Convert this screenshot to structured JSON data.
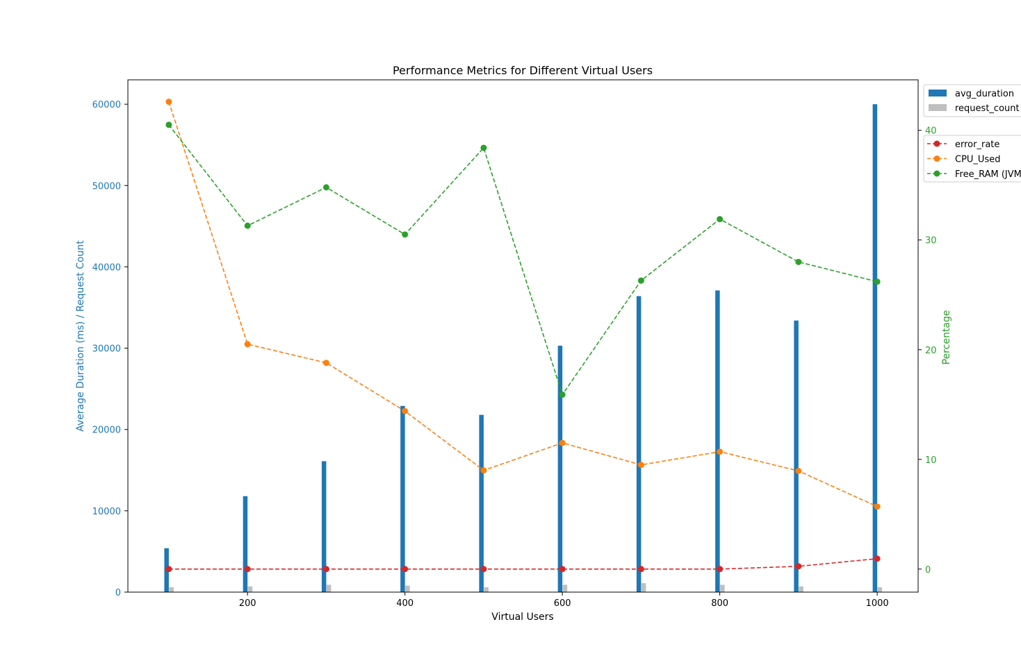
{
  "chart_data": {
    "type": "bar",
    "title": "Performance Metrics for Different Virtual Users",
    "xlabel": "Virtual Users",
    "ylabel_left": "Average Duration (ms) / Request Count",
    "ylabel_right": "Percentage",
    "x": [
      100,
      200,
      300,
      400,
      500,
      600,
      700,
      800,
      900,
      1000
    ],
    "x_ticks": [
      200,
      400,
      600,
      800,
      1000
    ],
    "xlim": [
      48,
      1052
    ],
    "left_ylim": [
      0,
      63000
    ],
    "left_ticks": [
      0,
      10000,
      20000,
      30000,
      40000,
      50000,
      60000
    ],
    "right_ylim": [
      -2.1,
      44.6
    ],
    "right_ticks": [
      0,
      10,
      20,
      30,
      40
    ],
    "grid": false,
    "bars": [
      {
        "name": "avg_duration",
        "color": "#1f77b4",
        "values": [
          5400,
          11800,
          16100,
          22900,
          21800,
          30300,
          36400,
          37100,
          33400,
          60000
        ]
      },
      {
        "name": "request_count",
        "color": "#bfbfbf",
        "values": [
          600,
          700,
          900,
          800,
          600,
          900,
          1100,
          900,
          700,
          600
        ]
      }
    ],
    "lines": [
      {
        "name": "error_rate",
        "color": "#d62728",
        "values": [
          0,
          0,
          0,
          0,
          0,
          0,
          0,
          0,
          0.25,
          0.95
        ]
      },
      {
        "name": "CPU_Used",
        "color": "#ff7f0e",
        "values": [
          42.6,
          20.5,
          18.8,
          14.4,
          9.0,
          11.5,
          9.5,
          10.7,
          8.95,
          5.7
        ]
      },
      {
        "name": "Free_RAM (JVM)",
        "color": "#2ca02c",
        "values": [
          40.5,
          31.3,
          34.8,
          30.5,
          38.4,
          15.9,
          26.3,
          31.9,
          28.0,
          26.2
        ]
      }
    ],
    "legend_bars": "top-right",
    "legend_lines": "upper-right"
  }
}
